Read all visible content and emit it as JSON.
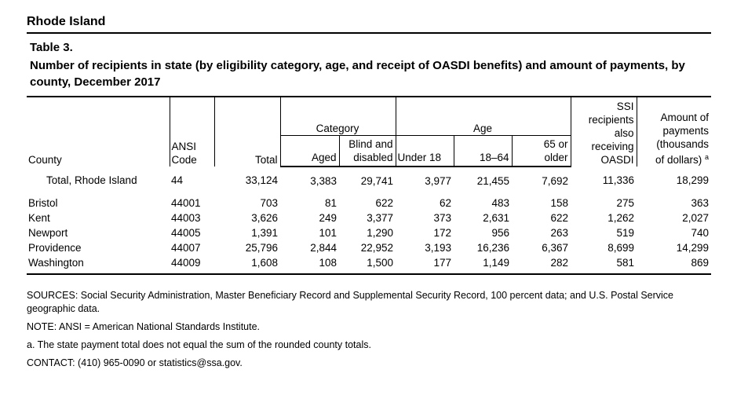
{
  "state_title": "Rhode Island",
  "table_label": "Table 3.",
  "caption": "Number of recipients in state (by eligibility category, age, and receipt of OASDI benefits) and amount of payments, by county, December 2017",
  "headers": {
    "county": "County",
    "ansi_line1": "ANSI",
    "ansi_line2": "Code",
    "total": "Total",
    "category_group": "Category",
    "aged": "Aged",
    "blind_line1": "Blind and",
    "blind_line2": "disabled",
    "age_group": "Age",
    "under18": "Under 18",
    "age18_64": "18–64",
    "age65_line1": "65 or",
    "age65_line2": "older",
    "ssi_line1": "SSI",
    "ssi_line2": "recipients",
    "ssi_line3": "also",
    "ssi_line4": "receiving",
    "ssi_line5": "OASDI",
    "amount_line1": "Amount of",
    "amount_line2": "payments",
    "amount_line3": "(thousands",
    "amount_line4": "of dollars)",
    "amount_note_mark": "a"
  },
  "total_row": {
    "county": "Total, Rhode Island",
    "ansi": "44",
    "total": "33,124",
    "aged": "3,383",
    "blind_disabled": "29,741",
    "under18": "3,977",
    "age18_64": "21,455",
    "age65": "7,692",
    "ssi_oasdi": "11,336",
    "amount": "18,299"
  },
  "rows": [
    {
      "county": "Bristol",
      "ansi": "44001",
      "total": "703",
      "aged": "81",
      "blind_disabled": "622",
      "under18": "62",
      "age18_64": "483",
      "age65": "158",
      "ssi_oasdi": "275",
      "amount": "363"
    },
    {
      "county": "Kent",
      "ansi": "44003",
      "total": "3,626",
      "aged": "249",
      "blind_disabled": "3,377",
      "under18": "373",
      "age18_64": "2,631",
      "age65": "622",
      "ssi_oasdi": "1,262",
      "amount": "2,027"
    },
    {
      "county": "Newport",
      "ansi": "44005",
      "total": "1,391",
      "aged": "101",
      "blind_disabled": "1,290",
      "under18": "172",
      "age18_64": "956",
      "age65": "263",
      "ssi_oasdi": "519",
      "amount": "740"
    },
    {
      "county": "Providence",
      "ansi": "44007",
      "total": "25,796",
      "aged": "2,844",
      "blind_disabled": "22,952",
      "under18": "3,193",
      "age18_64": "16,236",
      "age65": "6,367",
      "ssi_oasdi": "8,699",
      "amount": "14,299"
    },
    {
      "county": "Washington",
      "ansi": "44009",
      "total": "1,608",
      "aged": "108",
      "blind_disabled": "1,500",
      "under18": "177",
      "age18_64": "1,149",
      "age65": "282",
      "ssi_oasdi": "581",
      "amount": "869"
    }
  ],
  "notes": {
    "sources": "SOURCES: Social Security Administration, Master Beneficiary Record and Supplemental Security Record, 100 percent data; and U.S. Postal Service geographic data.",
    "note": "NOTE: ANSI = American National Standards Institute.",
    "footnote_a": "a.  The state payment total does not equal the sum of the rounded county totals.",
    "contact": "CONTACT: (410) 965-0090 or statistics@ssa.gov."
  }
}
